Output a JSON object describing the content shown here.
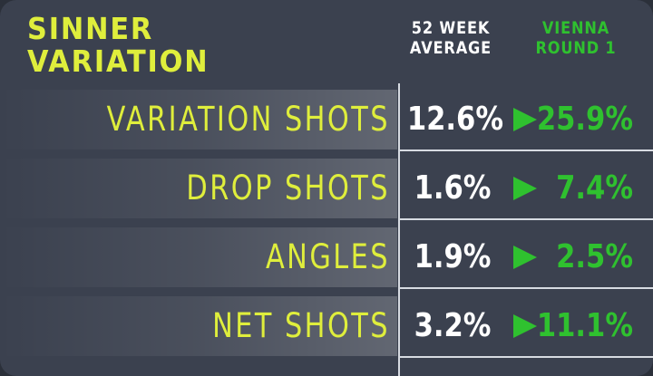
{
  "header": {
    "title_lines": [
      "SINNER",
      "VARIATION"
    ]
  },
  "table": {
    "columns": [
      [
        "52 WEEK",
        "AVERAGE"
      ],
      [
        "VIENNA",
        "ROUND 1"
      ]
    ],
    "rows": [
      [
        "VARIATION SHOTS",
        "12.6%",
        "25.9%"
      ],
      [
        "DROP SHOTS",
        "1.6%",
        "7.4%"
      ],
      [
        "ANGLES",
        "1.9%",
        "2.5%"
      ],
      [
        "NET SHOTS",
        "3.2%",
        "11.1%"
      ]
    ]
  }
}
